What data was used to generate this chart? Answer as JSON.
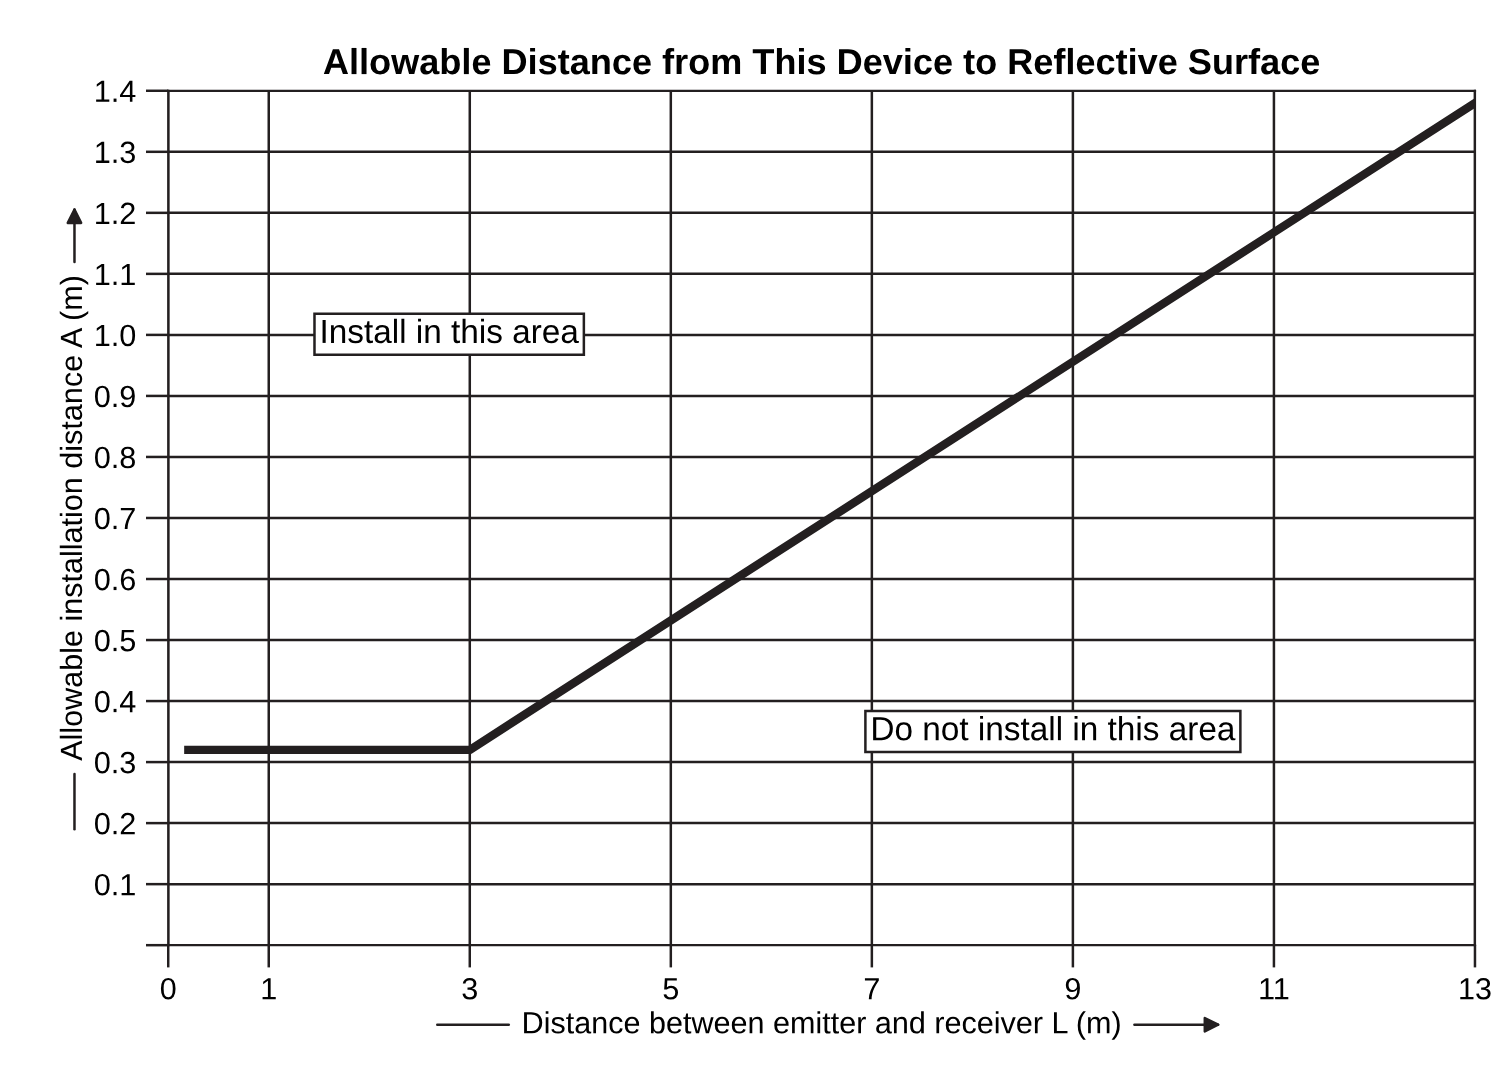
{
  "chart_data": {
    "type": "line",
    "title": "Allowable Distance from This Device to Reflective Surface",
    "xlabel": "Distance between emitter and receiver L (m)",
    "ylabel": "Allowable installation distance A (m)",
    "x": [
      0.2,
      3,
      13
    ],
    "series": [
      {
        "color": "#231f20",
        "values": [
          0.32,
          0.32,
          1.38
        ]
      }
    ],
    "xlim": [
      0,
      13
    ],
    "xticks": [
      0,
      1,
      3,
      5,
      7,
      9,
      11,
      13
    ],
    "ylim": [
      0,
      1.4
    ],
    "yticks": [
      {
        "value": 0,
        "label": null
      },
      0.1,
      0.2,
      0.3,
      0.4,
      0.5,
      0.6,
      0.7,
      0.8,
      0.9,
      {
        "value": 1.0,
        "label": "1.0"
      },
      1.1,
      1.2,
      1.3,
      1.4
    ],
    "grid": true,
    "marker": "none",
    "line_style": "solid",
    "annotations": [
      "Install in this area",
      "Do not install in this area"
    ]
  }
}
